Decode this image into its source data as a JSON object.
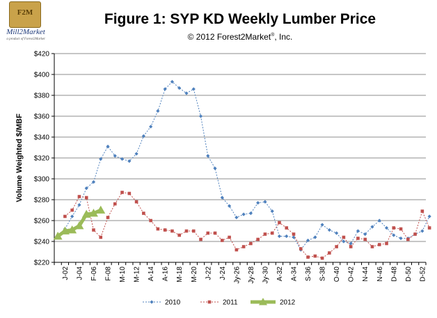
{
  "logo": {
    "badge_text": "F2M",
    "brand": "Mill2Market",
    "tagline": "a product of Forest2Market"
  },
  "chart_data": {
    "type": "line",
    "title": "Figure 1: SYP KD Weekly Lumber Price",
    "subtitle": "© 2012 Forest2Market",
    "subtitle_mark": "®",
    "subtitle_suffix": ", Inc.",
    "ylabel": "Volume Weighted $/MBF",
    "xlabel": "",
    "ylim": [
      220,
      420
    ],
    "yticks": [
      "$220",
      "$240",
      "$260",
      "$280",
      "$300",
      "$320",
      "$340",
      "$360",
      "$380",
      "$400",
      "$420"
    ],
    "grid": true,
    "legend_position": "bottom",
    "x_count": 52,
    "xtick_labels": [
      {
        "week": 2,
        "label": "J-02"
      },
      {
        "week": 4,
        "label": "J-04"
      },
      {
        "week": 6,
        "label": "F-06"
      },
      {
        "week": 8,
        "label": "F-08"
      },
      {
        "week": 10,
        "label": "M-10"
      },
      {
        "week": 12,
        "label": "M-12"
      },
      {
        "week": 14,
        "label": "A-14"
      },
      {
        "week": 16,
        "label": "A-16"
      },
      {
        "week": 18,
        "label": "M-18"
      },
      {
        "week": 20,
        "label": "M-20"
      },
      {
        "week": 22,
        "label": "J-22"
      },
      {
        "week": 24,
        "label": "J-24"
      },
      {
        "week": 26,
        "label": "Jy-26"
      },
      {
        "week": 28,
        "label": "Jy-28"
      },
      {
        "week": 30,
        "label": "Jy-30"
      },
      {
        "week": 32,
        "label": "A-32"
      },
      {
        "week": 34,
        "label": "A-34"
      },
      {
        "week": 36,
        "label": "S-36"
      },
      {
        "week": 38,
        "label": "S-38"
      },
      {
        "week": 40,
        "label": "O-40"
      },
      {
        "week": 42,
        "label": "O-42"
      },
      {
        "week": 44,
        "label": "N-44"
      },
      {
        "week": 46,
        "label": "N-46"
      },
      {
        "week": 48,
        "label": "D-48"
      },
      {
        "week": 50,
        "label": "D-50"
      },
      {
        "week": 52,
        "label": "D-52"
      }
    ],
    "series": [
      {
        "name": "2010",
        "color": "#4f81bd",
        "marker": "diamond",
        "start_week": 2,
        "values": [
          252,
          264,
          275,
          291,
          297,
          319,
          331,
          322,
          319,
          317,
          324,
          341,
          350,
          365,
          386,
          393,
          387,
          382,
          386,
          360,
          322,
          310,
          282,
          274,
          263,
          266,
          267,
          277,
          278,
          269,
          245,
          245,
          244,
          232,
          241,
          244,
          256,
          251,
          248,
          240,
          238,
          250,
          247,
          254,
          260,
          253,
          246,
          243,
          243,
          247,
          250,
          264
        ]
      },
      {
        "name": "2011",
        "color": "#c0504d",
        "marker": "square",
        "start_week": 2,
        "values": [
          264,
          270,
          283,
          282,
          251,
          244,
          263,
          276,
          287,
          286,
          278,
          267,
          260,
          252,
          251,
          250,
          246,
          250,
          250,
          242,
          248,
          248,
          241,
          244,
          232,
          235,
          238,
          242,
          247,
          248,
          258,
          253,
          247,
          233,
          225,
          226,
          224,
          229,
          235,
          244,
          235,
          243,
          242,
          235,
          237,
          238,
          253,
          252,
          242,
          247,
          269,
          253
        ]
      },
      {
        "name": "2012",
        "color": "#9bbb59",
        "marker": "triangle",
        "start_week": 1,
        "values": [
          245,
          250,
          251,
          255,
          266,
          267,
          270
        ]
      }
    ]
  }
}
